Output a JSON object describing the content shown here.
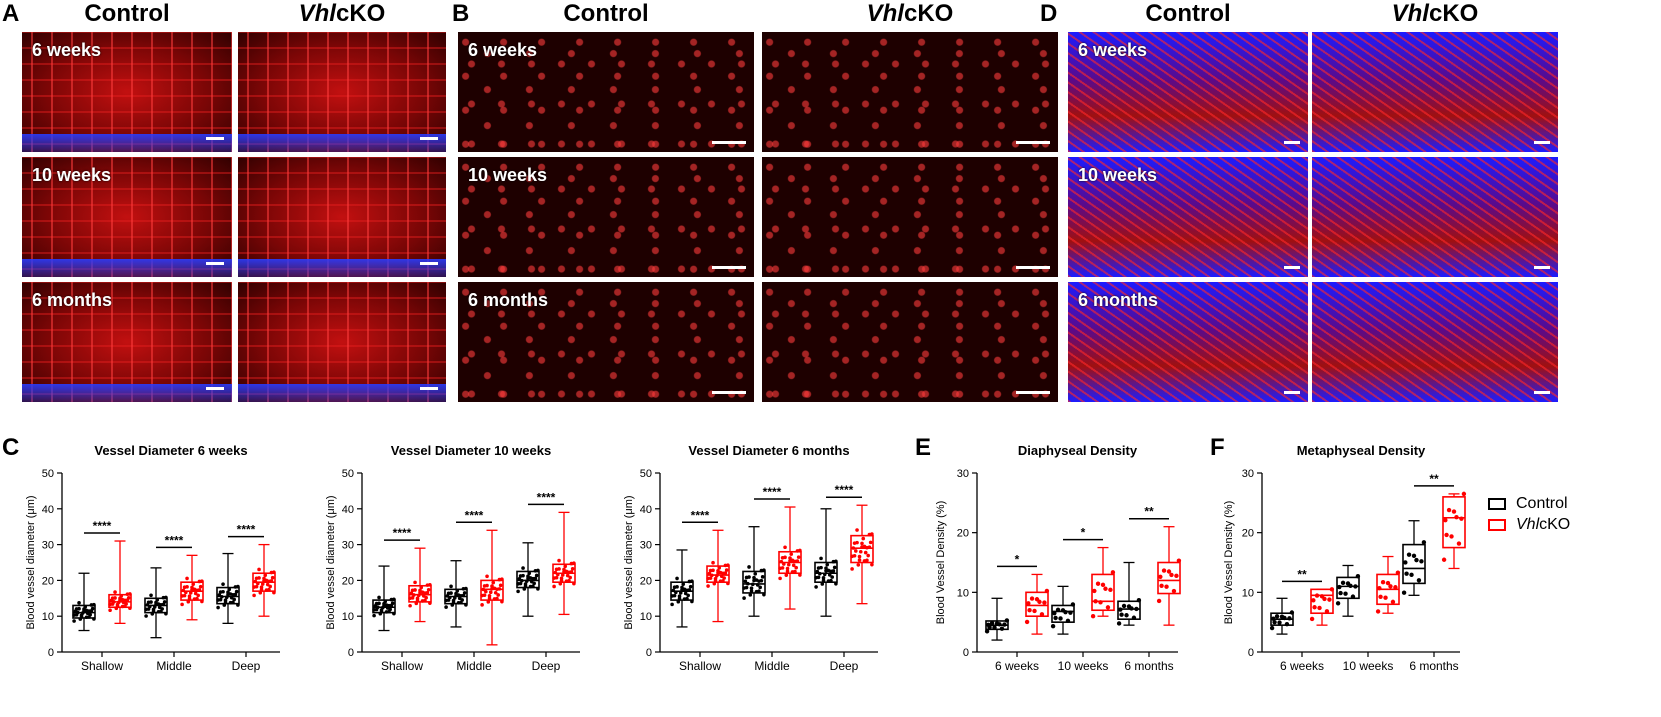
{
  "panels": {
    "A": {
      "letter": "A",
      "col1": "Control",
      "col2_italic": "Vhl",
      "col2_rest": "cKO",
      "rows": [
        "6 weeks",
        "10 weeks",
        "6 months"
      ]
    },
    "B": {
      "letter": "B",
      "col1": "Control",
      "col2_italic": "Vhl",
      "col2_rest": "cKO",
      "rows": [
        "6 weeks",
        "10 weeks",
        "6 months"
      ]
    },
    "D": {
      "letter": "D",
      "col1": "Control",
      "col2_italic": "Vhl",
      "col2_rest": "cKO",
      "rows": [
        "6 weeks",
        "10 weeks",
        "6 months"
      ]
    },
    "C": {
      "letter": "C"
    },
    "E": {
      "letter": "E"
    },
    "F": {
      "letter": "F"
    }
  },
  "colors": {
    "control": "#000000",
    "vhlcko": "#ff0000",
    "microscopy_red": "#d01010",
    "microscopy_blue": "#2030ff"
  },
  "legend": {
    "control": "Control",
    "vhl_italic": "Vhl",
    "vhl_rest": "cKO"
  },
  "chart_data": [
    {
      "type": "box",
      "title": "Vessel Diameter 6 weeks",
      "ylabel": "Blood vessel diameter (μm)",
      "ylim": [
        0,
        50
      ],
      "yticks": [
        0,
        10,
        20,
        30,
        40,
        50
      ],
      "categories": [
        "Shallow",
        "Middle",
        "Deep"
      ],
      "series": [
        {
          "group": "Control",
          "boxes": [
            {
              "min": 6,
              "q1": 9.5,
              "median": 11,
              "q3": 13,
              "max": 22
            },
            {
              "min": 4,
              "q1": 11,
              "median": 13,
              "q3": 15,
              "max": 23.5
            },
            {
              "min": 8,
              "q1": 13.5,
              "median": 15.5,
              "q3": 18,
              "max": 27.5
            }
          ]
        },
        {
          "group": "VhlcKO",
          "boxes": [
            {
              "min": 8,
              "q1": 12.5,
              "median": 14,
              "q3": 16,
              "max": 31
            },
            {
              "min": 9,
              "q1": 14.5,
              "median": 17,
              "q3": 19.5,
              "max": 27
            },
            {
              "min": 10,
              "q1": 17,
              "median": 19.5,
              "q3": 22,
              "max": 30
            }
          ]
        }
      ],
      "significance": [
        "****",
        "****",
        "****"
      ]
    },
    {
      "type": "box",
      "title": "Vessel Diameter 10 weeks",
      "ylabel": "Blood vessel diameter (μm)",
      "ylim": [
        0,
        50
      ],
      "yticks": [
        0,
        10,
        20,
        30,
        40,
        50
      ],
      "categories": [
        "Shallow",
        "Middle",
        "Deep"
      ],
      "series": [
        {
          "group": "Control",
          "boxes": [
            {
              "min": 6,
              "q1": 11,
              "median": 12.5,
              "q3": 14.5,
              "max": 24
            },
            {
              "min": 7,
              "q1": 13.5,
              "median": 15.5,
              "q3": 17.5,
              "max": 25.5
            },
            {
              "min": 10,
              "q1": 18,
              "median": 20,
              "q3": 22.5,
              "max": 30.5
            }
          ]
        },
        {
          "group": "VhlcKO",
          "boxes": [
            {
              "min": 8.5,
              "q1": 14,
              "median": 16,
              "q3": 18.5,
              "max": 29
            },
            {
              "min": 2,
              "q1": 14.5,
              "median": 17.5,
              "q3": 20,
              "max": 34
            },
            {
              "min": 10.5,
              "q1": 19.5,
              "median": 22,
              "q3": 24.5,
              "max": 39
            }
          ]
        }
      ],
      "significance": [
        "****",
        "****",
        "****"
      ]
    },
    {
      "type": "box",
      "title": "Vessel Diameter 6 months",
      "ylabel": "Blood vessel diameter (μm)",
      "ylim": [
        0,
        50
      ],
      "yticks": [
        0,
        10,
        20,
        30,
        40,
        50
      ],
      "categories": [
        "Shallow",
        "Middle",
        "Deep"
      ],
      "series": [
        {
          "group": "Control",
          "boxes": [
            {
              "min": 7,
              "q1": 14.5,
              "median": 17,
              "q3": 19.5,
              "max": 28.5
            },
            {
              "min": 10,
              "q1": 16.5,
              "median": 19,
              "q3": 22.5,
              "max": 35
            },
            {
              "min": 10,
              "q1": 19.5,
              "median": 22,
              "q3": 25,
              "max": 40
            }
          ]
        },
        {
          "group": "VhlcKO",
          "boxes": [
            {
              "min": 8.5,
              "q1": 19.5,
              "median": 21.5,
              "q3": 24,
              "max": 34
            },
            {
              "min": 12,
              "q1": 22,
              "median": 25,
              "q3": 28,
              "max": 40.5
            },
            {
              "min": 13.5,
              "q1": 25,
              "median": 29,
              "q3": 32.5,
              "max": 41
            }
          ]
        }
      ],
      "significance": [
        "****",
        "****",
        "****"
      ]
    },
    {
      "type": "box",
      "title": "Diaphyseal Density",
      "ylabel": "Blood Vessel Density (%)",
      "ylim": [
        0,
        30
      ],
      "yticks": [
        0,
        10,
        20,
        30
      ],
      "categories": [
        "6 weeks",
        "10 weeks",
        "6 months"
      ],
      "series": [
        {
          "group": "Control",
          "boxes": [
            {
              "min": 2,
              "q1": 3.8,
              "median": 4.5,
              "q3": 5.2,
              "max": 9
            },
            {
              "min": 3,
              "q1": 5,
              "median": 6.8,
              "q3": 7.8,
              "max": 11
            },
            {
              "min": 4.5,
              "q1": 5.5,
              "median": 7.2,
              "q3": 8.5,
              "max": 15
            }
          ]
        },
        {
          "group": "VhlcKO",
          "boxes": [
            {
              "min": 3,
              "q1": 6,
              "median": 7.8,
              "q3": 10,
              "max": 13
            },
            {
              "min": 6,
              "q1": 7,
              "median": 8.5,
              "q3": 13,
              "max": 17.5
            },
            {
              "min": 4.5,
              "q1": 9.8,
              "median": 12,
              "q3": 15,
              "max": 21
            }
          ]
        }
      ],
      "significance": [
        "*",
        "*",
        "**"
      ]
    },
    {
      "type": "box",
      "title": "Metaphyseal Density",
      "ylabel": "Blood Vessel Density (%)",
      "ylim": [
        0,
        30
      ],
      "yticks": [
        0,
        10,
        20,
        30
      ],
      "categories": [
        "6 weeks",
        "10 weeks",
        "6 months"
      ],
      "series": [
        {
          "group": "Control",
          "boxes": [
            {
              "min": 3,
              "q1": 4.5,
              "median": 5.5,
              "q3": 6.5,
              "max": 9
            },
            {
              "min": 6,
              "q1": 9,
              "median": 11,
              "q3": 12.5,
              "max": 14.5
            },
            {
              "min": 9.5,
              "q1": 11.5,
              "median": 14,
              "q3": 18,
              "max": 22
            }
          ]
        },
        {
          "group": "VhlcKO",
          "boxes": [
            {
              "min": 4.5,
              "q1": 6.5,
              "median": 9.5,
              "q3": 10.5,
              "max": 10.5
            },
            {
              "min": 6.5,
              "q1": 8,
              "median": 10.5,
              "q3": 13,
              "max": 16
            },
            {
              "min": 14,
              "q1": 17.5,
              "median": 22.5,
              "q3": 26,
              "max": 26.5
            }
          ]
        }
      ],
      "significance": [
        "**",
        "",
        "**"
      ]
    }
  ]
}
